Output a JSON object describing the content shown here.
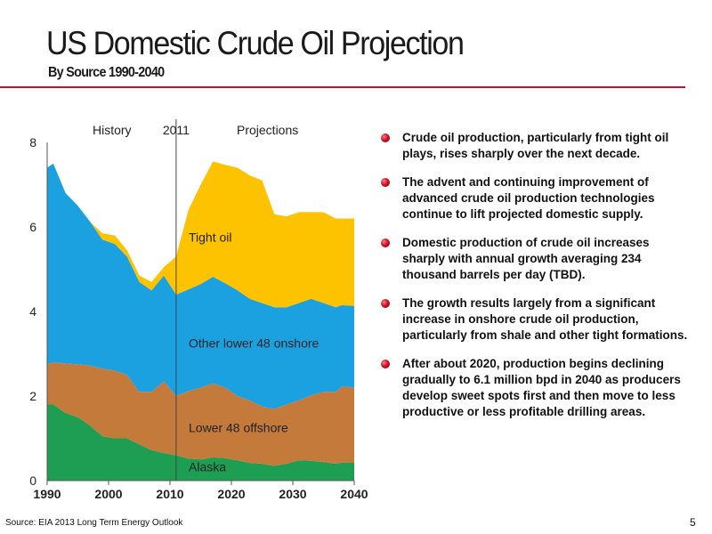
{
  "header": {
    "title": "US Domestic Crude Oil Projection",
    "subtitle": "By Source 1990-2040"
  },
  "bullets": [
    "Crude oil production, particularly from tight oil plays, rises sharply over the next decade.",
    "The advent and continuing improvement of advanced crude oil production technologies continue to lift projected domestic supply.",
    "Domestic production of crude oil increases sharply with annual growth averaging 234 thousand barrels per day (TBD).",
    "The growth results largely from a significant increase in onshore crude oil production, particularly from shale and other tight formations.",
    "After about 2020, production begins declining gradually to 6.1 million bpd in 2040 as producers develop sweet spots first and then move to less productive or less profitable drilling areas."
  ],
  "footer": {
    "source": "Source: EIA  2013 Long Term Energy Outlook",
    "page": "5"
  },
  "colors": {
    "alaska": "#1e9e52",
    "offshore": "#c47a3a",
    "onshore": "#1ba0e0",
    "tight": "#fdc300",
    "rule": "#c8102e"
  },
  "chart_data": {
    "type": "area",
    "stacked": true,
    "x_ticks": [
      1990,
      2000,
      2010,
      2020,
      2030,
      2040
    ],
    "y_ticks": [
      0,
      2,
      4,
      6,
      8
    ],
    "xlim": [
      1990,
      2040
    ],
    "ylim": [
      0,
      8
    ],
    "headers": [
      "History",
      "2011",
      "Projections"
    ],
    "divider_year": 2011,
    "series": [
      {
        "name": "Alaska",
        "color": "#1e9e52",
        "points": [
          [
            1990,
            1.8
          ],
          [
            1991,
            1.8
          ],
          [
            1993,
            1.6
          ],
          [
            1995,
            1.5
          ],
          [
            1997,
            1.3
          ],
          [
            1999,
            1.05
          ],
          [
            2001,
            1.0
          ],
          [
            2003,
            1.0
          ],
          [
            2005,
            0.86
          ],
          [
            2007,
            0.72
          ],
          [
            2009,
            0.65
          ],
          [
            2011,
            0.6
          ],
          [
            2013,
            0.52
          ],
          [
            2015,
            0.5
          ],
          [
            2017,
            0.55
          ],
          [
            2019,
            0.53
          ],
          [
            2021,
            0.48
          ],
          [
            2023,
            0.42
          ],
          [
            2025,
            0.4
          ],
          [
            2027,
            0.35
          ],
          [
            2029,
            0.4
          ],
          [
            2031,
            0.48
          ],
          [
            2033,
            0.47
          ],
          [
            2035,
            0.44
          ],
          [
            2037,
            0.4
          ],
          [
            2038,
            0.43
          ],
          [
            2040,
            0.43
          ]
        ]
      },
      {
        "name": "Lower 48 offshore",
        "color": "#c47a3a",
        "points": [
          [
            1990,
            0.95
          ],
          [
            1991,
            1.0
          ],
          [
            1993,
            1.17
          ],
          [
            1995,
            1.25
          ],
          [
            1997,
            1.42
          ],
          [
            1999,
            1.6
          ],
          [
            2001,
            1.6
          ],
          [
            2003,
            1.5
          ],
          [
            2005,
            1.24
          ],
          [
            2007,
            1.38
          ],
          [
            2009,
            1.7
          ],
          [
            2011,
            1.4
          ],
          [
            2013,
            1.6
          ],
          [
            2015,
            1.7
          ],
          [
            2017,
            1.75
          ],
          [
            2019,
            1.67
          ],
          [
            2021,
            1.52
          ],
          [
            2023,
            1.48
          ],
          [
            2025,
            1.35
          ],
          [
            2027,
            1.35
          ],
          [
            2029,
            1.4
          ],
          [
            2031,
            1.42
          ],
          [
            2033,
            1.55
          ],
          [
            2035,
            1.66
          ],
          [
            2037,
            1.7
          ],
          [
            2038,
            1.8
          ],
          [
            2040,
            1.77
          ]
        ]
      },
      {
        "name": "Other lower 48 onshore",
        "color": "#1ba0e0",
        "points": [
          [
            1990,
            4.65
          ],
          [
            1991,
            4.7
          ],
          [
            1993,
            4.03
          ],
          [
            1995,
            3.75
          ],
          [
            1997,
            3.4
          ],
          [
            1999,
            3.05
          ],
          [
            2001,
            3.0
          ],
          [
            2003,
            2.8
          ],
          [
            2005,
            2.6
          ],
          [
            2007,
            2.4
          ],
          [
            2009,
            2.5
          ],
          [
            2011,
            2.4
          ],
          [
            2013,
            2.4
          ],
          [
            2015,
            2.45
          ],
          [
            2017,
            2.52
          ],
          [
            2019,
            2.47
          ],
          [
            2021,
            2.5
          ],
          [
            2023,
            2.4
          ],
          [
            2025,
            2.45
          ],
          [
            2027,
            2.4
          ],
          [
            2029,
            2.3
          ],
          [
            2031,
            2.3
          ],
          [
            2033,
            2.28
          ],
          [
            2035,
            2.1
          ],
          [
            2037,
            2.0
          ],
          [
            2038,
            1.92
          ],
          [
            2040,
            1.93
          ]
        ]
      },
      {
        "name": "Tight oil",
        "color": "#fdc300",
        "points": [
          [
            1990,
            0
          ],
          [
            1991,
            0
          ],
          [
            1993,
            0
          ],
          [
            1995,
            0
          ],
          [
            1997,
            0
          ],
          [
            1999,
            0.15
          ],
          [
            2001,
            0.2
          ],
          [
            2003,
            0.15
          ],
          [
            2005,
            0.15
          ],
          [
            2007,
            0.2
          ],
          [
            2009,
            0.2
          ],
          [
            2011,
            0.9
          ],
          [
            2013,
            1.88
          ],
          [
            2015,
            2.35
          ],
          [
            2017,
            2.73
          ],
          [
            2019,
            2.8
          ],
          [
            2021,
            2.9
          ],
          [
            2023,
            2.92
          ],
          [
            2025,
            2.9
          ],
          [
            2027,
            2.2
          ],
          [
            2029,
            2.15
          ],
          [
            2031,
            2.15
          ],
          [
            2033,
            2.05
          ],
          [
            2035,
            2.15
          ],
          [
            2037,
            2.1
          ],
          [
            2038,
            2.05
          ],
          [
            2040,
            2.07
          ]
        ]
      }
    ],
    "area_labels": [
      "Tight oil",
      "Other lower 48 onshore",
      "Lower 48 offshore",
      "Alaska"
    ]
  }
}
